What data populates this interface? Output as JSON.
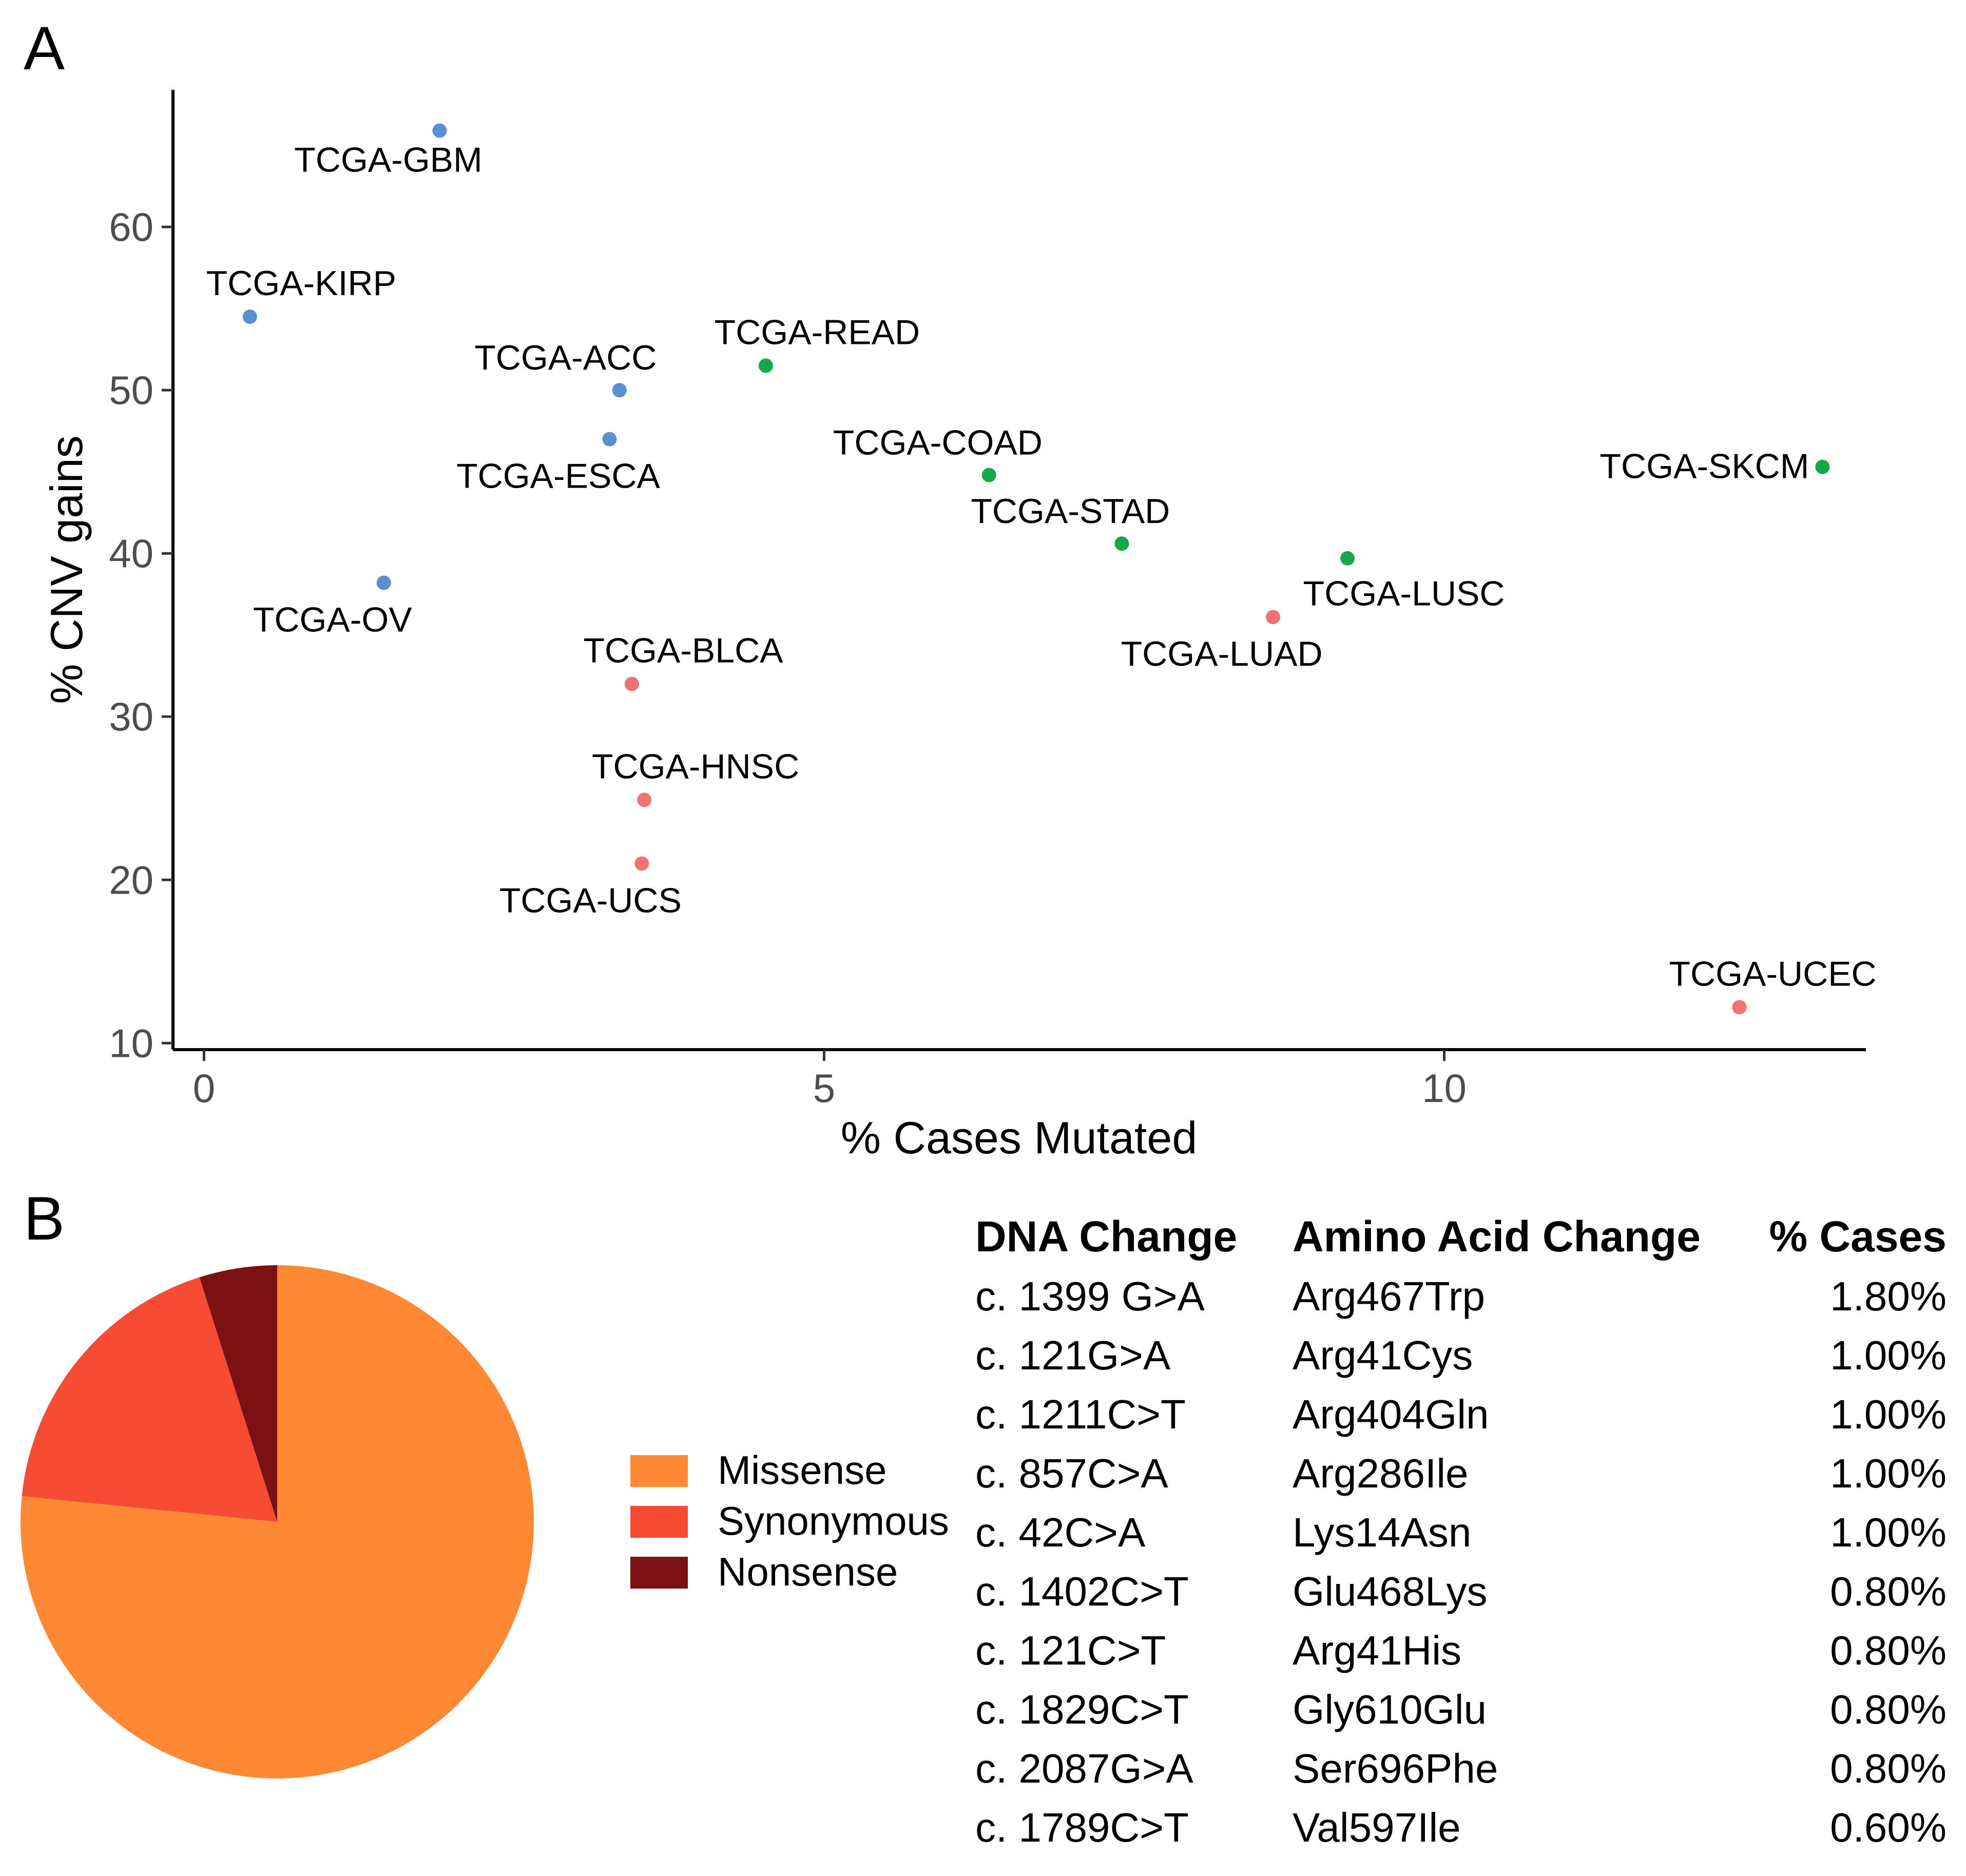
{
  "chart_data": [
    {
      "type": "scatter",
      "panel_label": "A",
      "xlabel": "% Cases Mutated",
      "ylabel": "% CNV gains",
      "xlim": [
        -0.25,
        13.4
      ],
      "ylim": [
        9.6,
        68.4
      ],
      "x_ticks": [
        0,
        5,
        10
      ],
      "y_ticks": [
        10,
        20,
        30,
        40,
        50,
        60
      ],
      "grid": false,
      "colors": {
        "blue": "#5b8fcf",
        "green": "#14a84a",
        "red": "#f07373"
      },
      "points": [
        {
          "label": "TCGA-GBM",
          "x": 1.9,
          "y": 65.9,
          "color": "blue",
          "label_pos": "below"
        },
        {
          "label": "TCGA-KIRP",
          "x": 0.37,
          "y": 54.5,
          "color": "blue",
          "label_pos": "above"
        },
        {
          "label": "TCGA-ACC",
          "x": 3.35,
          "y": 50.0,
          "color": "blue",
          "label_pos": "above-left"
        },
        {
          "label": "TCGA-ESCA",
          "x": 3.27,
          "y": 47.0,
          "color": "blue",
          "label_pos": "below-left"
        },
        {
          "label": "TCGA-OV",
          "x": 1.45,
          "y": 38.2,
          "color": "blue",
          "label_pos": "below-left"
        },
        {
          "label": "TCGA-READ",
          "x": 4.53,
          "y": 51.5,
          "color": "green",
          "label_pos": "above"
        },
        {
          "label": "TCGA-COAD",
          "x": 6.33,
          "y": 44.8,
          "color": "green",
          "label_pos": "above-left"
        },
        {
          "label": "TCGA-STAD",
          "x": 7.4,
          "y": 40.6,
          "color": "green",
          "label_pos": "above-left"
        },
        {
          "label": "TCGA-LUSC",
          "x": 9.22,
          "y": 39.7,
          "color": "green",
          "label_pos": "below-right"
        },
        {
          "label": "TCGA-SKCM",
          "x": 13.05,
          "y": 45.3,
          "color": "green",
          "label_pos": "left"
        },
        {
          "label": "TCGA-LUAD",
          "x": 8.62,
          "y": 36.1,
          "color": "red",
          "label_pos": "below-left"
        },
        {
          "label": "TCGA-BLCA",
          "x": 3.45,
          "y": 32.0,
          "color": "red",
          "label_pos": "above-right"
        },
        {
          "label": "TCGA-HNSC",
          "x": 3.55,
          "y": 24.9,
          "color": "red",
          "label_pos": "above-right"
        },
        {
          "label": "TCGA-UCS",
          "x": 3.53,
          "y": 21.0,
          "color": "red",
          "label_pos": "below-left"
        },
        {
          "label": "TCGA-UCEC",
          "x": 12.38,
          "y": 12.2,
          "color": "red",
          "label_pos": "above"
        }
      ]
    },
    {
      "type": "pie",
      "panel_label": "B",
      "slices": [
        {
          "name": "Missense",
          "value": 0.766,
          "color": "#fe8833"
        },
        {
          "name": "Synonymous",
          "value": 0.185,
          "color": "#f74a33"
        },
        {
          "name": "Nonsense",
          "value": 0.049,
          "color": "#7a1212"
        }
      ],
      "legend": [
        "Missense",
        "Synonymous",
        "Nonsense"
      ],
      "legend_position": "right"
    },
    {
      "type": "table",
      "columns": [
        "DNA Change",
        "Amino Acid Change",
        "% Cases"
      ],
      "rows": [
        [
          "c. 1399 G>A",
          "Arg467Trp",
          "1.80%"
        ],
        [
          "c. 121G>A",
          "Arg41Cys",
          "1.00%"
        ],
        [
          "c. 1211C>T",
          "Arg404Gln",
          "1.00%"
        ],
        [
          "c. 857C>A",
          "Arg286Ile",
          "1.00%"
        ],
        [
          "c. 42C>A",
          "Lys14Asn",
          "1.00%"
        ],
        [
          "c. 1402C>T",
          "Glu468Lys",
          "0.80%"
        ],
        [
          "c. 121C>T",
          "Arg41His",
          "0.80%"
        ],
        [
          "c. 1829C>T",
          "Gly610Glu",
          "0.80%"
        ],
        [
          "c. 2087G>A",
          "Ser696Phe",
          "0.80%"
        ],
        [
          "c. 1789C>T",
          "Val597Ile",
          "0.60%"
        ]
      ]
    }
  ]
}
